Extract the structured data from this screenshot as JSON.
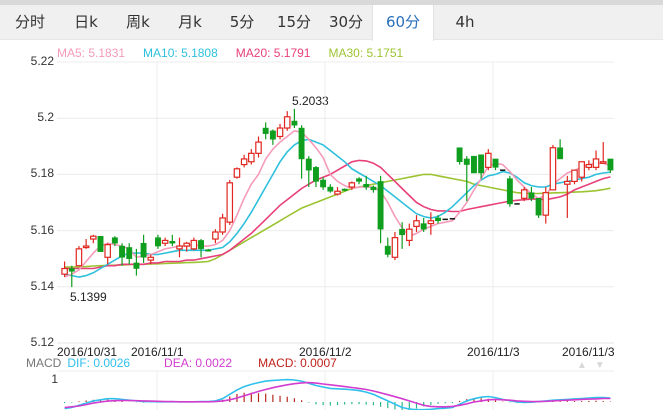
{
  "tabs": [
    {
      "label": "分时",
      "active": false
    },
    {
      "label": "日k",
      "active": false
    },
    {
      "label": "周k",
      "active": false
    },
    {
      "label": "月k",
      "active": false
    },
    {
      "label": "5分",
      "active": false
    },
    {
      "label": "15分",
      "active": false
    },
    {
      "label": "30分",
      "active": false
    },
    {
      "label": "60分",
      "active": true
    },
    {
      "label": "4h",
      "active": false
    }
  ],
  "ma_legend": {
    "ma5": "MA5: 5.1831",
    "ma10": "MA10: 5.1808",
    "ma20": "MA20: 5.1791",
    "ma30": "MA30: 5.1751"
  },
  "macd_legend": {
    "title": "MACD",
    "dif": "DIF: 0.0026",
    "dea": "DEA: 0.0022",
    "macd": "MACD: 0.0007"
  },
  "macd_axis_label": "1",
  "annotations": {
    "high": "5.2033",
    "low": "5.1399"
  },
  "colors": {
    "up": "#e0261f",
    "down": "#0f9e1e",
    "ma5": "#f59bb9",
    "ma10": "#2fc0dc",
    "ma20": "#e8407a",
    "ma30": "#9cc431",
    "dif": "#2fc0ec",
    "dea": "#d23ccf",
    "macd_pos": "#b8291c",
    "macd_neg": "#2cb78f",
    "active_tab": "#2a6ebb"
  },
  "chart_data": {
    "type": "candlestick",
    "title": "60分 K线",
    "xlabel": "",
    "ylabel": "",
    "ylim": [
      5.12,
      5.22
    ],
    "yticks": [
      5.22,
      5.2,
      5.18,
      5.16,
      5.14,
      5.12
    ],
    "x_tick_labels": [
      "2016/10/31",
      "2016/11/1",
      "2016/11/2",
      "2016/11/3",
      "2016/11/3"
    ],
    "grid": true,
    "candles": [
      [
        5.1445,
        5.1465,
        5.149,
        5.1435
      ],
      [
        5.1465,
        5.1455,
        5.1475,
        5.1399
      ],
      [
        5.1475,
        5.1535,
        5.1545,
        5.1475
      ],
      [
        5.154,
        5.1545,
        5.157,
        5.1535
      ],
      [
        5.157,
        5.158,
        5.1585,
        5.1555
      ],
      [
        5.158,
        5.1525,
        5.158,
        5.1525
      ],
      [
        5.1505,
        5.155,
        5.1555,
        5.148
      ],
      [
        5.1575,
        5.1555,
        5.158,
        5.1545
      ],
      [
        5.1545,
        5.1505,
        5.1555,
        5.1475
      ],
      [
        5.154,
        5.15,
        5.1555,
        5.148
      ],
      [
        5.1485,
        5.1465,
        5.1535,
        5.144
      ],
      [
        5.1555,
        5.1505,
        5.1585,
        5.1485
      ],
      [
        5.1495,
        5.1505,
        5.1515,
        5.148
      ],
      [
        5.1575,
        5.1545,
        5.1585,
        5.1535
      ],
      [
        5.1555,
        5.1565,
        5.1575,
        5.1545
      ],
      [
        5.1562,
        5.1555,
        5.1585,
        5.1545
      ],
      [
        5.1535,
        5.1545,
        5.1575,
        5.1505
      ],
      [
        5.1545,
        5.1555,
        5.156,
        5.1525
      ],
      [
        5.1535,
        5.1565,
        5.1575,
        5.153
      ],
      [
        5.1565,
        5.1535,
        5.157,
        5.1505
      ],
      [
        5.1532,
        5.153,
        5.1535,
        5.153
      ],
      [
        5.157,
        5.1595,
        5.1605,
        5.1555
      ],
      [
        5.1595,
        5.1645,
        5.166,
        5.1585
      ],
      [
        5.163,
        5.177,
        5.178,
        5.162
      ],
      [
        5.179,
        5.182,
        5.1825,
        5.1785
      ],
      [
        5.1835,
        5.1855,
        5.187,
        5.1825
      ],
      [
        5.1845,
        5.1875,
        5.189,
        5.1835
      ],
      [
        5.1875,
        5.1915,
        5.1935,
        5.186
      ],
      [
        5.1965,
        5.1945,
        5.1985,
        5.1925
      ],
      [
        5.1955,
        5.1925,
        5.196,
        5.1905
      ],
      [
        5.1935,
        5.1965,
        5.198,
        5.1925
      ],
      [
        5.1965,
        5.2005,
        5.2025,
        5.1955
      ],
      [
        5.199,
        5.1975,
        5.2033,
        5.1965
      ],
      [
        5.1965,
        5.1855,
        5.1975,
        5.1785
      ],
      [
        5.1855,
        5.1815,
        5.1865,
        5.1755
      ],
      [
        5.1825,
        5.1775,
        5.183,
        5.1755
      ],
      [
        5.178,
        5.1755,
        5.179,
        5.1745
      ],
      [
        5.1755,
        5.174,
        5.1765,
        5.1735
      ],
      [
        5.173,
        5.174,
        5.1755,
        5.1725
      ],
      [
        5.1748,
        5.1745,
        5.175,
        5.174
      ],
      [
        5.1755,
        5.177,
        5.1775,
        5.1745
      ],
      [
        5.1785,
        5.1775,
        5.179,
        5.1765
      ],
      [
        5.1765,
        5.1755,
        5.1795,
        5.1745
      ],
      [
        5.1755,
        5.1745,
        5.176,
        5.1735
      ],
      [
        5.1775,
        5.1605,
        5.1795,
        5.1555
      ],
      [
        5.1545,
        5.1515,
        5.1575,
        5.1505
      ],
      [
        5.1505,
        5.1575,
        5.1595,
        5.1495
      ],
      [
        5.1605,
        5.1585,
        5.163,
        5.1535
      ],
      [
        5.1565,
        5.1605,
        5.1625,
        5.1545
      ],
      [
        5.1615,
        5.1635,
        5.1655,
        5.1595
      ],
      [
        5.1625,
        5.1605,
        5.1645,
        5.1595
      ],
      [
        5.1625,
        5.1635,
        5.1665,
        5.1585
      ],
      [
        5.1645,
        5.1635,
        5.1655,
        5.1625
      ],
      [
        5.164,
        5.164,
        5.164,
        5.164
      ],
      [
        5.1642,
        5.1642,
        5.1642,
        5.1642
      ],
      [
        5.1895,
        5.1845,
        5.1895,
        5.1835
      ],
      [
        5.1855,
        5.1835,
        5.1865,
        5.1705
      ],
      [
        5.1865,
        5.1805,
        5.1865,
        5.1805
      ],
      [
        5.187,
        5.1805,
        5.187,
        5.1785
      ],
      [
        5.1825,
        5.1875,
        5.189,
        5.1815
      ],
      [
        5.1855,
        5.1825,
        5.1855,
        5.1815
      ],
      [
        5.1815,
        5.1815,
        5.1815,
        5.1815
      ],
      [
        5.1785,
        5.1695,
        5.1795,
        5.1685
      ],
      [
        5.1695,
        5.1695,
        5.1695,
        5.1695
      ],
      [
        5.1715,
        5.1745,
        5.1755,
        5.1705
      ],
      [
        5.1735,
        5.1715,
        5.1755,
        5.1705
      ],
      [
        5.1715,
        5.1655,
        5.1715,
        5.1645
      ],
      [
        5.1655,
        5.1735,
        5.1755,
        5.1625
      ],
      [
        5.1745,
        5.1895,
        5.1905,
        5.1745
      ],
      [
        5.1895,
        5.1855,
        5.1925,
        5.1855
      ],
      [
        5.1765,
        5.1775,
        5.1795,
        5.1645
      ],
      [
        5.1775,
        5.1815,
        5.1815,
        5.1765
      ],
      [
        5.179,
        5.1845,
        5.1845,
        5.1775
      ],
      [
        5.1825,
        5.1835,
        5.185,
        5.1815
      ],
      [
        5.1825,
        5.1855,
        5.1885,
        5.1815
      ],
      [
        5.1845,
        5.1845,
        5.1915,
        5.1845
      ],
      [
        5.1855,
        5.1815,
        5.1855,
        5.1805
      ]
    ],
    "candle_format": "open, close, high, low",
    "series": [
      {
        "name": "MA5",
        "last": 5.1831,
        "values": [
          5.1435,
          5.1445,
          5.146,
          5.149,
          5.152,
          5.1545,
          5.1555,
          5.155,
          5.1545,
          5.1535,
          5.1505,
          5.151,
          5.1515,
          5.1525,
          5.1535,
          5.154,
          5.1545,
          5.1545,
          5.155,
          5.1545,
          5.1545,
          5.155,
          5.1565,
          5.16,
          5.1655,
          5.1715,
          5.1765,
          5.18,
          5.1855,
          5.189,
          5.1915,
          5.1935,
          5.1955,
          5.195,
          5.1925,
          5.1895,
          5.186,
          5.18,
          5.1775,
          5.176,
          5.175,
          5.1755,
          5.1755,
          5.1755,
          5.174,
          5.17,
          5.165,
          5.161,
          5.158,
          5.159,
          5.1605,
          5.1615,
          5.1625,
          5.163,
          5.1635,
          5.1665,
          5.17,
          5.1745,
          5.1785,
          5.183,
          5.184,
          5.1835,
          5.181,
          5.178,
          5.1755,
          5.173,
          5.1715,
          5.1725,
          5.1765,
          5.1785,
          5.1805,
          5.1815,
          5.1825,
          5.1835,
          5.184,
          5.184,
          5.1831
        ]
      },
      {
        "name": "MA10",
        "last": 5.1808,
        "values": [
          5.1445,
          5.144,
          5.1435,
          5.144,
          5.145,
          5.1465,
          5.148,
          5.1495,
          5.151,
          5.152,
          5.152,
          5.152,
          5.1515,
          5.1515,
          5.152,
          5.1525,
          5.153,
          5.153,
          5.153,
          5.153,
          5.153,
          5.1535,
          5.154,
          5.156,
          5.159,
          5.1625,
          5.1665,
          5.171,
          5.1755,
          5.18,
          5.1845,
          5.188,
          5.1905,
          5.192,
          5.1925,
          5.1915,
          5.1905,
          5.1885,
          5.1865,
          5.1845,
          5.182,
          5.1805,
          5.179,
          5.1775,
          5.176,
          5.174,
          5.172,
          5.17,
          5.168,
          5.166,
          5.165,
          5.1645,
          5.165,
          5.1665,
          5.1685,
          5.171,
          5.1735,
          5.176,
          5.178,
          5.1795,
          5.18,
          5.181,
          5.1805,
          5.179,
          5.177,
          5.176,
          5.1755,
          5.1755,
          5.1765,
          5.177,
          5.1775,
          5.178,
          5.1785,
          5.179,
          5.18,
          5.1805,
          5.1808
        ]
      },
      {
        "name": "MA20",
        "last": 5.1791,
        "values": [
          5.1465,
          5.1465,
          5.1465,
          5.1465,
          5.1465,
          5.147,
          5.1475,
          5.1475,
          5.148,
          5.148,
          5.148,
          5.148,
          5.1485,
          5.1485,
          5.149,
          5.149,
          5.149,
          5.1495,
          5.1495,
          5.15,
          5.1505,
          5.151,
          5.1515,
          5.153,
          5.155,
          5.157,
          5.159,
          5.1615,
          5.164,
          5.1665,
          5.169,
          5.171,
          5.173,
          5.175,
          5.1765,
          5.178,
          5.179,
          5.18,
          5.1815,
          5.183,
          5.1845,
          5.185,
          5.1848,
          5.184,
          5.1825,
          5.18,
          5.1775,
          5.175,
          5.1725,
          5.17,
          5.1685,
          5.1675,
          5.167,
          5.167,
          5.1668,
          5.1668,
          5.1675,
          5.168,
          5.1685,
          5.169,
          5.1695,
          5.17,
          5.1705,
          5.1708,
          5.171,
          5.1712,
          5.1712,
          5.171,
          5.1715,
          5.172,
          5.173,
          5.1745,
          5.1755,
          5.1765,
          5.1775,
          5.1785,
          5.1791
        ]
      },
      {
        "name": "MA30",
        "last": 5.1751,
        "values": [
          5.147,
          5.147,
          5.147,
          5.1472,
          5.1474,
          5.1475,
          5.1476,
          5.1477,
          5.1478,
          5.1479,
          5.148,
          5.148,
          5.1481,
          5.1482,
          5.1483,
          5.1484,
          5.1485,
          5.1486,
          5.1487,
          5.1488,
          5.149,
          5.15,
          5.1515,
          5.153,
          5.1545,
          5.156,
          5.1575,
          5.159,
          5.1605,
          5.162,
          5.1635,
          5.165,
          5.1665,
          5.168,
          5.169,
          5.17,
          5.171,
          5.172,
          5.173,
          5.174,
          5.175,
          5.1755,
          5.176,
          5.1765,
          5.177,
          5.1775,
          5.178,
          5.1785,
          5.179,
          5.1795,
          5.18,
          5.18,
          5.1795,
          5.179,
          5.1785,
          5.178,
          5.1775,
          5.1765,
          5.176,
          5.1755,
          5.175,
          5.1745,
          5.174,
          5.1735,
          5.1733,
          5.1732,
          5.1732,
          5.1733,
          5.1734,
          5.1735,
          5.1736,
          5.1737,
          5.1738,
          5.174,
          5.1742,
          5.1746,
          5.1751
        ]
      }
    ],
    "macd": {
      "dif_last": 0.0026,
      "dea_last": 0.0022,
      "macd_last": 0.0007,
      "dif": [
        -0.3,
        -0.25,
        -0.15,
        -0.05,
        0.05,
        0.1,
        0.15,
        0.15,
        0.12,
        0.08,
        0.05,
        0.02,
        0.02,
        0.01,
        0.01,
        0.01,
        0.01,
        0.01,
        0.01,
        0.02,
        0.02,
        0.05,
        0.15,
        0.35,
        0.55,
        0.7,
        0.8,
        0.88,
        0.95,
        0.98,
        1.0,
        1.02,
        1.0,
        0.95,
        0.85,
        0.75,
        0.68,
        0.62,
        0.6,
        0.58,
        0.56,
        0.52,
        0.45,
        0.35,
        0.2,
        0.05,
        -0.1,
        -0.25,
        -0.32,
        -0.35,
        -0.35,
        -0.33,
        -0.3,
        -0.28,
        -0.25,
        -0.1,
        0.05,
        0.15,
        0.22,
        0.25,
        0.2,
        0.12,
        0.06,
        0.0,
        -0.02,
        -0.01,
        0.02,
        0.05,
        0.08,
        0.1,
        0.12,
        0.14,
        0.16,
        0.18,
        0.2,
        0.2,
        0.18
      ],
      "dea": [
        -0.25,
        -0.22,
        -0.18,
        -0.12,
        -0.05,
        0.0,
        0.04,
        0.06,
        0.07,
        0.07,
        0.06,
        0.05,
        0.04,
        0.03,
        0.02,
        0.02,
        0.01,
        0.01,
        0.01,
        0.01,
        0.01,
        0.02,
        0.05,
        0.1,
        0.18,
        0.28,
        0.38,
        0.48,
        0.57,
        0.65,
        0.72,
        0.78,
        0.83,
        0.87,
        0.88,
        0.86,
        0.82,
        0.78,
        0.74,
        0.7,
        0.66,
        0.62,
        0.57,
        0.5,
        0.42,
        0.33,
        0.24,
        0.15,
        0.05,
        -0.05,
        -0.15,
        -0.2,
        -0.22,
        -0.22,
        -0.2,
        -0.15,
        -0.08,
        0.0,
        0.05,
        0.1,
        0.12,
        0.1,
        0.08,
        0.05,
        0.03,
        0.02,
        0.02,
        0.03,
        0.05,
        0.07,
        0.08,
        0.1,
        0.12,
        0.13,
        0.14,
        0.16,
        0.16
      ],
      "hist": [
        -0.05,
        -0.03,
        0.03,
        0.07,
        0.1,
        0.1,
        0.11,
        0.09,
        0.05,
        0.01,
        -0.01,
        -0.03,
        -0.02,
        -0.02,
        -0.01,
        -0.01,
        0.0,
        0.0,
        0.0,
        0.01,
        0.01,
        0.03,
        0.1,
        0.25,
        0.37,
        0.42,
        0.42,
        0.4,
        0.38,
        0.33,
        0.28,
        0.24,
        0.17,
        0.08,
        -0.03,
        -0.11,
        -0.14,
        -0.16,
        -0.14,
        -0.12,
        -0.1,
        -0.1,
        -0.12,
        -0.15,
        -0.22,
        -0.28,
        -0.34,
        -0.4,
        -0.37,
        -0.3,
        -0.2,
        -0.13,
        -0.08,
        -0.06,
        -0.05,
        0.05,
        0.13,
        0.15,
        0.17,
        0.15,
        0.08,
        0.02,
        -0.02,
        -0.05,
        -0.05,
        -0.03,
        0.0,
        0.02,
        0.03,
        0.03,
        0.04,
        0.04,
        0.04,
        0.05,
        0.06,
        0.04,
        0.02
      ]
    }
  }
}
